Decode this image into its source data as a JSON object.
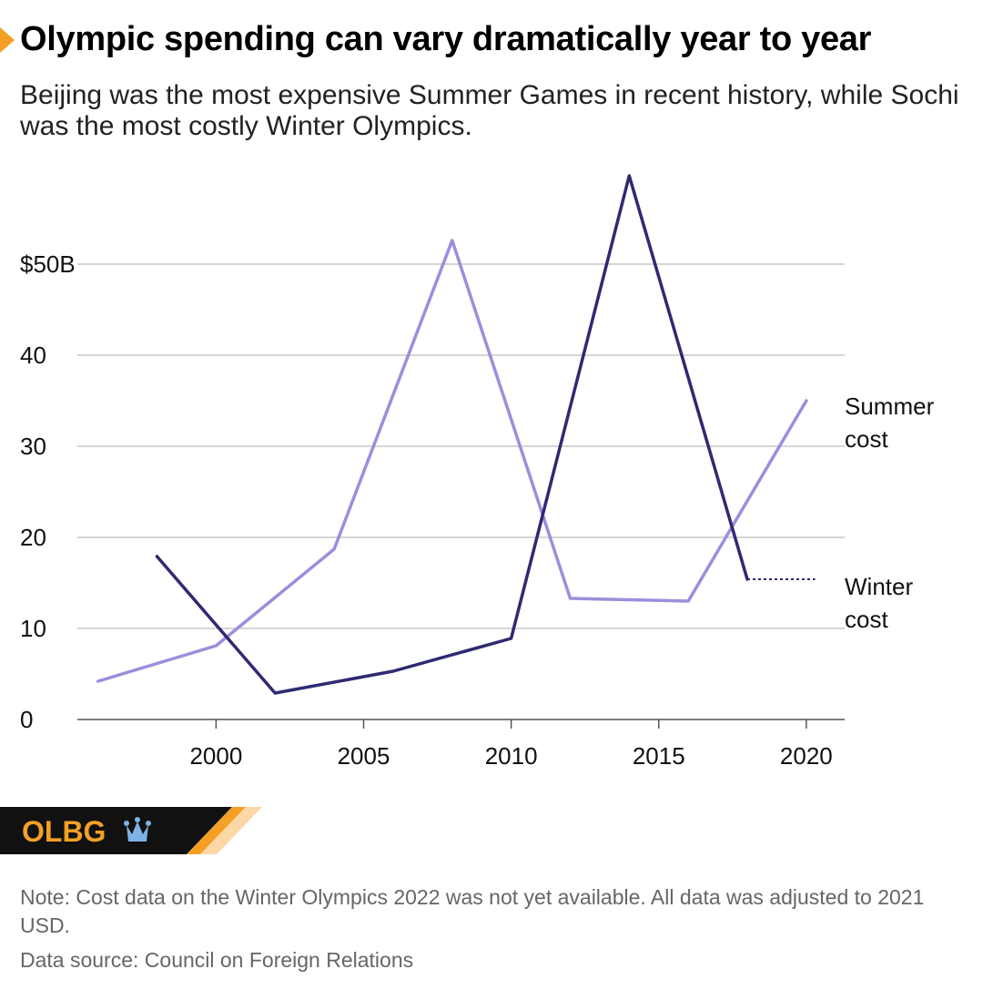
{
  "header": {
    "title": "Olympic spending can vary dramatically year to year",
    "subtitle": "Beijing was the most expensive Summer Games in recent history, while Sochi was the most costly Winter Olympics."
  },
  "colors": {
    "accent": "#f4a024",
    "summer": "#9b8fdc",
    "winter": "#2e2a72",
    "grid": "#bdbdbd",
    "banner_dark": "#111111",
    "banner_orange": "#f4a024",
    "banner_light": "#fcd8a6"
  },
  "chart_data": {
    "type": "line",
    "title": "Olympic spending can vary dramatically year to year",
    "xlabel": "",
    "ylabel": "",
    "xlim": [
      1995.3,
      2021.3
    ],
    "ylim": [
      0,
      60
    ],
    "grid": true,
    "y_ticks": [
      0,
      10,
      20,
      30,
      40,
      50
    ],
    "y_tick_labels": [
      "0",
      "10",
      "20",
      "30",
      "40",
      "$50B"
    ],
    "x_ticks": [
      2000,
      2005,
      2010,
      2015,
      2020
    ],
    "x_tick_labels": [
      "2000",
      "2005",
      "2010",
      "2015",
      "2020"
    ],
    "series": [
      {
        "name": "Summer cost",
        "label_lines": [
          "Summer",
          "cost"
        ],
        "x": [
          1996,
          2000,
          2004,
          2008,
          2012,
          2016,
          2020
        ],
        "values": [
          4.2,
          8.1,
          18.7,
          52.6,
          13.3,
          13.0,
          35.0
        ]
      },
      {
        "name": "Winter cost",
        "label_lines": [
          "Winter",
          "cost"
        ],
        "x": [
          1998,
          2002,
          2006,
          2010,
          2014,
          2018
        ],
        "values": [
          17.9,
          2.9,
          5.3,
          8.9,
          59.7,
          15.4
        ],
        "dotted_extension_to": 2020.3
      }
    ]
  },
  "brand": {
    "logo_text": "OLBG"
  },
  "footer": {
    "note": "Note: Cost data on the Winter Olympics 2022 was not yet available. All data was adjusted to 2021 USD.",
    "source": "Data source: Council on Foreign Relations"
  }
}
